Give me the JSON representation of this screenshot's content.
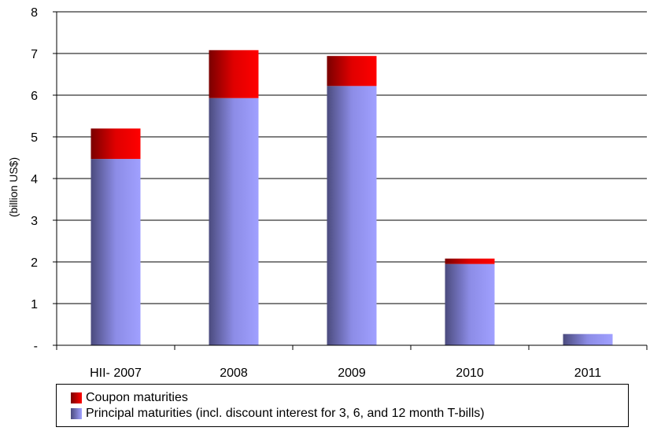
{
  "chart_data": {
    "type": "bar",
    "stacked": true,
    "categories": [
      "HII- 2007",
      "2008",
      "2009",
      "2010",
      "2011"
    ],
    "series": [
      {
        "name": "Principal maturities (incl. discount interest for 3, 6, and 12 month T-bills)",
        "values": [
          4.47,
          5.93,
          6.22,
          1.95,
          0.27
        ],
        "color": "#9999ff"
      },
      {
        "name": "Coupon maturities",
        "values": [
          0.73,
          1.15,
          0.72,
          0.13,
          0.0
        ],
        "color": "#ff0000"
      }
    ],
    "ylabel": "(billion US$)",
    "ylim": [
      0,
      8
    ],
    "yticks": [
      0,
      1,
      2,
      3,
      4,
      5,
      6,
      7,
      8
    ],
    "ytick_labels": [
      "-",
      "1",
      "2",
      "3",
      "4",
      "5",
      "6",
      "7",
      "8"
    ],
    "grid": true,
    "legend_position": "bottom"
  },
  "legend": {
    "coupon_label": "Coupon maturities",
    "principal_label": "Principal maturities (incl. discount interest for 3, 6, and 12 month T-bills)"
  }
}
